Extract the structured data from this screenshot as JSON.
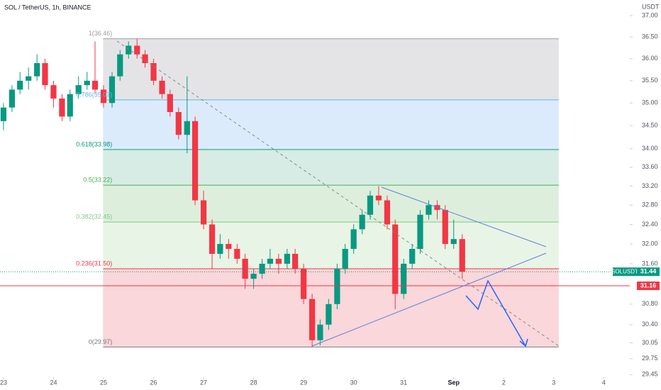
{
  "chart_data": {
    "type": "candlestick",
    "title": "SOL / TetherUS, 1h, BINANCE",
    "y_unit": "USDT",
    "log_scale": true,
    "up_color": "#089981",
    "down_color": "#f23645",
    "xlim": [
      -0.07,
      12.52
    ],
    "ylim": [
      29.4,
      37.37
    ],
    "xticks": [
      {
        "value": 0,
        "label": "23"
      },
      {
        "value": 1,
        "label": "24"
      },
      {
        "value": 2,
        "label": "25"
      },
      {
        "value": 3,
        "label": "26"
      },
      {
        "value": 4,
        "label": "27"
      },
      {
        "value": 5,
        "label": "28"
      },
      {
        "value": 6,
        "label": "29"
      },
      {
        "value": 7,
        "label": "30"
      },
      {
        "value": 8,
        "label": "31"
      },
      {
        "value": 9,
        "label": "Sep"
      },
      {
        "value": 10,
        "label": "2"
      },
      {
        "value": 11,
        "label": "3"
      },
      {
        "value": 12,
        "label": "4"
      }
    ],
    "yticks": [
      {
        "value": 37,
        "label": "37.00"
      },
      {
        "value": 36.5,
        "label": "36.50"
      },
      {
        "value": 36,
        "label": "36.00"
      },
      {
        "value": 35.5,
        "label": "35.50"
      },
      {
        "value": 35,
        "label": "35.00"
      },
      {
        "value": 34.5,
        "label": "34.50"
      },
      {
        "value": 34,
        "label": "34.00"
      },
      {
        "value": 33.6,
        "label": "33.60"
      },
      {
        "value": 33.2,
        "label": "33.20"
      },
      {
        "value": 32.8,
        "label": "32.80"
      },
      {
        "value": 32.4,
        "label": "32.40"
      },
      {
        "value": 32,
        "label": "32.00"
      },
      {
        "value": 31.6,
        "label": "31.60"
      },
      {
        "value": 30.8,
        "label": "30.80"
      },
      {
        "value": 30.4,
        "label": "30.40"
      },
      30.05,
      29.75,
      29.45
    ],
    "x": [
      0,
      0.17,
      0.33,
      0.5,
      0.67,
      0.83,
      1,
      1.17,
      1.33,
      1.5,
      1.67,
      1.83,
      2,
      2.17,
      2.33,
      2.5,
      2.67,
      2.83,
      3,
      3.17,
      3.33,
      3.5,
      3.67,
      3.83,
      4,
      4.17,
      4.33,
      4.5,
      4.67,
      4.83,
      5,
      5.17,
      5.33,
      5.5,
      5.67,
      5.83,
      6,
      6.17,
      6.33,
      6.5,
      6.67,
      6.83,
      7,
      7.17,
      7.33,
      7.5,
      7.67,
      7.83,
      8,
      8.17,
      8.33,
      8.5,
      8.67,
      8.83,
      9,
      9.17
    ],
    "ohlc": [
      [
        34.6,
        35.0,
        34.4,
        34.9
      ],
      [
        34.9,
        35.4,
        34.8,
        35.3
      ],
      [
        35.3,
        35.7,
        35.2,
        35.5
      ],
      [
        35.5,
        35.8,
        35.3,
        35.6
      ],
      [
        35.6,
        36.1,
        35.5,
        35.9
      ],
      [
        35.9,
        36.0,
        35.3,
        35.4
      ],
      [
        35.4,
        35.5,
        34.9,
        35.1
      ],
      [
        35.1,
        35.2,
        34.6,
        34.7
      ],
      [
        34.7,
        35.3,
        34.6,
        35.2
      ],
      [
        35.2,
        35.6,
        35.1,
        35.4
      ],
      [
        35.4,
        35.7,
        35.3,
        35.5
      ],
      [
        35.5,
        36.4,
        35.2,
        35.3
      ],
      [
        35.3,
        35.4,
        34.9,
        35.0
      ],
      [
        35.0,
        35.7,
        34.9,
        35.6
      ],
      [
        35.6,
        36.2,
        35.5,
        36.1
      ],
      [
        36.1,
        36.4,
        36.0,
        36.3
      ],
      [
        36.3,
        36.46,
        36.0,
        36.1
      ],
      [
        36.1,
        36.2,
        35.8,
        35.9
      ],
      [
        35.9,
        36.0,
        35.4,
        35.5
      ],
      [
        35.5,
        35.6,
        35.1,
        35.2
      ],
      [
        35.2,
        35.3,
        34.7,
        34.8
      ],
      [
        34.8,
        34.9,
        34.2,
        34.3
      ],
      [
        34.3,
        35.6,
        33.9,
        34.6
      ],
      [
        34.6,
        34.7,
        32.8,
        32.9
      ],
      [
        32.9,
        33.1,
        32.3,
        32.4
      ],
      [
        32.4,
        32.5,
        31.5,
        31.8
      ],
      [
        31.8,
        32.2,
        31.7,
        32.0
      ],
      [
        32.0,
        32.1,
        31.7,
        31.9
      ],
      [
        31.9,
        32.0,
        31.6,
        31.7
      ],
      [
        31.7,
        31.8,
        31.1,
        31.3
      ],
      [
        31.3,
        31.5,
        31.1,
        31.4
      ],
      [
        31.4,
        31.7,
        31.3,
        31.6
      ],
      [
        31.6,
        31.9,
        31.5,
        31.7
      ],
      [
        31.7,
        31.8,
        31.4,
        31.6
      ],
      [
        31.6,
        31.9,
        31.5,
        31.8
      ],
      [
        31.8,
        31.9,
        31.4,
        31.5
      ],
      [
        31.5,
        31.6,
        30.8,
        30.9
      ],
      [
        30.9,
        31.0,
        29.97,
        30.1
      ],
      [
        30.1,
        30.5,
        30.0,
        30.4
      ],
      [
        30.4,
        30.9,
        30.3,
        30.8
      ],
      [
        30.8,
        31.6,
        30.7,
        31.5
      ],
      [
        31.5,
        32.0,
        31.4,
        31.9
      ],
      [
        31.9,
        32.4,
        31.8,
        32.3
      ],
      [
        32.3,
        32.7,
        32.2,
        32.6
      ],
      [
        32.6,
        33.1,
        32.5,
        33.0
      ],
      [
        33.0,
        33.2,
        32.8,
        32.9
      ],
      [
        32.9,
        33.0,
        32.3,
        32.4
      ],
      [
        32.4,
        32.5,
        30.7,
        31.0
      ],
      [
        31.0,
        31.7,
        30.9,
        31.6
      ],
      [
        31.6,
        32.0,
        31.5,
        31.9
      ],
      [
        31.9,
        32.7,
        31.8,
        32.6
      ],
      [
        32.6,
        32.9,
        32.5,
        32.8
      ],
      [
        32.8,
        32.9,
        32.5,
        32.7
      ],
      [
        32.7,
        32.8,
        31.9,
        32.0
      ],
      [
        32.0,
        32.5,
        31.9,
        32.1
      ],
      [
        32.1,
        32.2,
        31.3,
        31.44
      ]
    ],
    "fib_xrange": [
      1.99,
      11.1
    ],
    "fib": [
      {
        "label": "1(36.46)",
        "value": 36.46,
        "color": "#9e9e9e",
        "fill": "#e4e4e6"
      },
      {
        "label": "0.786(35.07)",
        "value": 35.07,
        "color": "#64b5f6",
        "fill": "#dcebfb"
      },
      {
        "label": "0.618(33.98)",
        "value": 33.98,
        "color": "#089981",
        "fill": "#d6ece5"
      },
      {
        "label": "0.5(33.22)",
        "value": 33.22,
        "color": "#4caf50",
        "fill": "#ddefdc"
      },
      {
        "label": "0.382(32.45)",
        "value": 32.45,
        "color": "#81c784",
        "fill": "#e8f4e6"
      },
      {
        "label": "0.236(31.50)",
        "value": 31.5,
        "color": "#f23645",
        "fill": "#f9d7da"
      },
      {
        "label": "0(29.97)",
        "value": 29.97,
        "color": "#787b86",
        "fill": null
      }
    ],
    "last_label": "SOLUSDT",
    "last_price": 31.44,
    "hline": 31.16
  }
}
